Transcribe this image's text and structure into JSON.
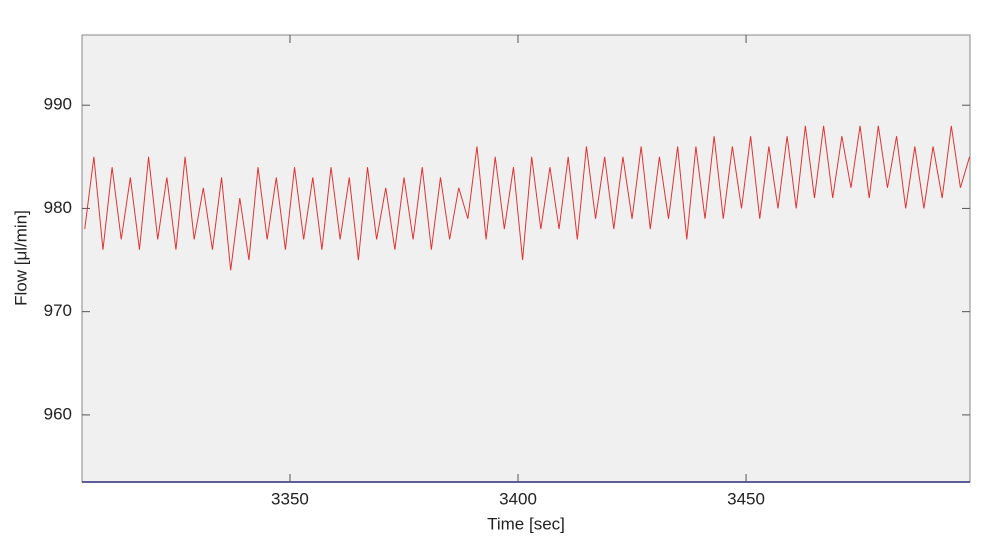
{
  "chart_data": {
    "type": "line",
    "xlabel": "Time [sec]",
    "ylabel": "Flow [μl/min]",
    "x": [
      3305,
      3307,
      3309,
      3311,
      3313,
      3315,
      3317,
      3319,
      3321,
      3323,
      3325,
      3327,
      3329,
      3331,
      3333,
      3335,
      3337,
      3339,
      3341,
      3343,
      3345,
      3347,
      3349,
      3351,
      3353,
      3355,
      3357,
      3359,
      3361,
      3363,
      3365,
      3367,
      3369,
      3371,
      3373,
      3375,
      3377,
      3379,
      3381,
      3383,
      3385,
      3387,
      3389,
      3391,
      3393,
      3395,
      3397,
      3399,
      3401,
      3403,
      3405,
      3407,
      3409,
      3411,
      3413,
      3415,
      3417,
      3419,
      3421,
      3423,
      3425,
      3427,
      3429,
      3431,
      3433,
      3435,
      3437,
      3439,
      3441,
      3443,
      3445,
      3447,
      3449,
      3451,
      3453,
      3455,
      3457,
      3459,
      3461,
      3463,
      3465,
      3467,
      3469,
      3471,
      3473,
      3475,
      3477,
      3479,
      3481,
      3483,
      3485,
      3487,
      3489,
      3491,
      3493,
      3495,
      3497,
      3499
    ],
    "series": [
      {
        "color": "#e03434",
        "values": [
          978,
          985,
          976,
          984,
          977,
          983,
          976,
          985,
          977,
          983,
          976,
          985,
          977,
          982,
          976,
          983,
          974,
          981,
          975,
          984,
          977,
          983,
          976,
          984,
          977,
          983,
          976,
          984,
          977,
          983,
          975,
          984,
          977,
          982,
          976,
          983,
          977,
          984,
          976,
          983,
          977,
          982,
          979,
          986,
          977,
          985,
          978,
          984,
          975,
          985,
          978,
          984,
          978,
          985,
          977,
          986,
          979,
          985,
          978,
          985,
          979,
          986,
          978,
          985,
          979,
          986,
          977,
          986,
          979,
          987,
          979,
          986,
          980,
          987,
          979,
          986,
          980,
          987,
          980,
          988,
          981,
          988,
          981,
          987,
          982,
          988,
          981,
          988,
          982,
          987,
          980,
          986,
          980,
          986,
          981,
          988,
          982,
          985
        ]
      }
    ],
    "xlim": [
      3304.4,
      3499.1
    ],
    "ylim": [
      953.5,
      996.8
    ],
    "xticks": [
      3350,
      3400,
      3450
    ],
    "yticks": [
      960,
      970,
      980,
      990
    ]
  }
}
